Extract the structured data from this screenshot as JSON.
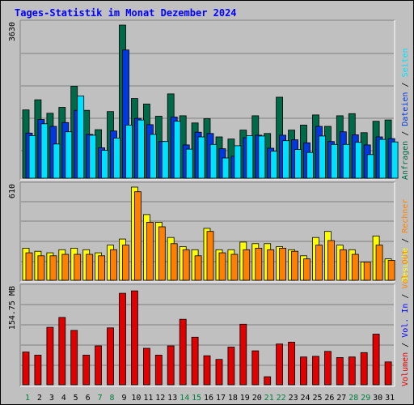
{
  "title": "Tages-Statistik im Monat Dezember 2024",
  "colors": {
    "background": "#c0c0c0",
    "grid": "#808080",
    "title": "#0000ff",
    "anfragen": "#006a48",
    "dateien": "#0038e0",
    "seiten": "#00e0ff",
    "besuche": "#ffff00",
    "rechner": "#ff8000",
    "vol_in": "#0000ff",
    "vol_out": "#ff8000",
    "volumen": "#e00000",
    "weekday_label": "#000000",
    "weekend_label": "#008040"
  },
  "right_labels": {
    "top": [
      {
        "text": "Anfragen",
        "color": "#006a48"
      },
      {
        "text": " / ",
        "color": "#000000"
      },
      {
        "text": "Dateien",
        "color": "#0038e0"
      },
      {
        "text": " / ",
        "color": "#000000"
      },
      {
        "text": "Seiten",
        "color": "#00e0ff"
      }
    ],
    "middle": [
      {
        "text": "Besuche",
        "color": "#ffff00"
      },
      {
        "text": " / ",
        "color": "#000000"
      },
      {
        "text": "Rechner",
        "color": "#ff8000"
      }
    ],
    "bottom": [
      {
        "text": "Volumen",
        "color": "#e00000"
      },
      {
        "text": " / ",
        "color": "#000000"
      },
      {
        "text": "Vol. In",
        "color": "#0000ff"
      },
      {
        "text": " / ",
        "color": "#000000"
      },
      {
        "text": "Vol. Out",
        "color": "#ff8000"
      }
    ]
  },
  "chart_data": {
    "type": "bar",
    "categories": [
      "1",
      "2",
      "3",
      "4",
      "5",
      "6",
      "7",
      "8",
      "9",
      "10",
      "11",
      "12",
      "13",
      "14",
      "15",
      "16",
      "17",
      "18",
      "19",
      "20",
      "21",
      "22",
      "23",
      "24",
      "25",
      "26",
      "27",
      "28",
      "29",
      "30",
      "31"
    ],
    "weekend_days": [
      "1",
      "7",
      "8",
      "14",
      "15",
      "21",
      "22",
      "28",
      "29"
    ],
    "panels": [
      {
        "id": "requests",
        "max_label": "3630",
        "max": 3630,
        "series": [
          {
            "name": "Anfragen",
            "values": [
              1620,
              1860,
              1540,
              1680,
              2180,
              1610,
              1150,
              1580,
              3630,
              1890,
              1760,
              1470,
              2000,
              1480,
              1310,
              1410,
              980,
              930,
              1140,
              1480,
              1060,
              1920,
              1140,
              1260,
              1500,
              1230,
              1480,
              1530,
              1080,
              1350,
              1380
            ]
          },
          {
            "name": "Dateien",
            "values": [
              1070,
              1390,
              1230,
              1320,
              1610,
              1040,
              720,
              1120,
              3040,
              1420,
              1270,
              870,
              1450,
              790,
              1090,
              1060,
              700,
              520,
              960,
              1020,
              710,
              1020,
              910,
              840,
              1230,
              870,
              1100,
              1030,
              790,
              980,
              940
            ]
          },
          {
            "name": "Seiten",
            "values": [
              1010,
              1290,
              810,
              1100,
              1950,
              1020,
              660,
              950,
              1260,
              1380,
              1040,
              870,
              1350,
              690,
              980,
              800,
              480,
              770,
              1010,
              1000,
              640,
              890,
              680,
              610,
              1000,
              800,
              800,
              850,
              560,
              920,
              860
            ]
          }
        ]
      },
      {
        "id": "visits",
        "max_label": "610",
        "max": 610,
        "series": [
          {
            "name": "Besuche",
            "values": [
              210,
              190,
              180,
              200,
              210,
              200,
              180,
              230,
              270,
              610,
              430,
              380,
              280,
              220,
              200,
              340,
              200,
              200,
              250,
              240,
              240,
              220,
              200,
              160,
              280,
              320,
              230,
              200,
              120,
              290,
              140
            ]
          },
          {
            "name": "Rechner",
            "values": [
              180,
              160,
              160,
              170,
              170,
              170,
              160,
              200,
              230,
              580,
              380,
              350,
              240,
              200,
              160,
              320,
              180,
              170,
              200,
              210,
              200,
              210,
              190,
              140,
              230,
              260,
              200,
              170,
              120,
              230,
              130
            ]
          }
        ]
      },
      {
        "id": "volume",
        "max_label": "154.75 MB",
        "max": 154.75,
        "series": [
          {
            "name": "Volumen",
            "values": [
              53,
              48,
              93,
              109,
              88,
              48,
              63,
              92,
              148,
              152,
              59,
              48,
              63,
              106,
              77,
              47,
              41,
              61,
              98,
              55,
              13,
              66,
              69,
              45,
              46,
              54,
              44,
              45,
              52,
              82,
              37
            ]
          }
        ]
      }
    ]
  }
}
